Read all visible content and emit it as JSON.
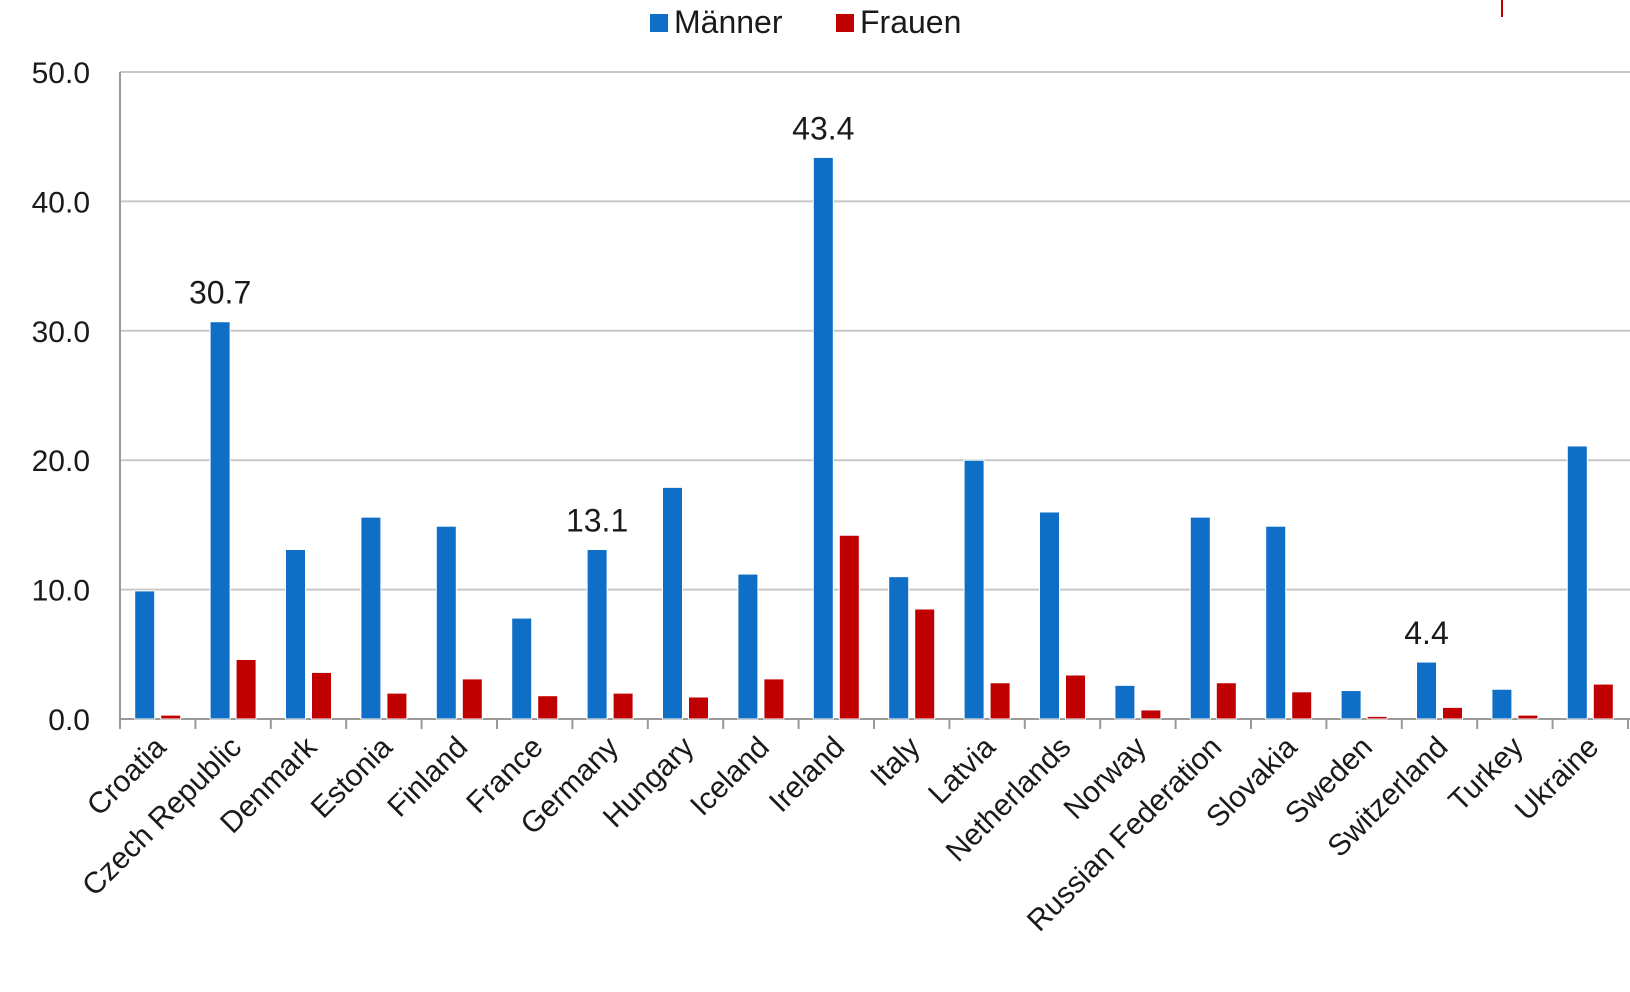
{
  "chart_data": {
    "type": "bar",
    "categories": [
      "Croatia",
      "Czech Republic",
      "Denmark",
      "Estonia",
      "Finland",
      "France",
      "Germany",
      "Hungary",
      "Iceland",
      "Ireland",
      "Italy",
      "Latvia",
      "Netherlands",
      "Norway",
      "Russian Federation",
      "Slovakia",
      "Sweden",
      "Switzerland",
      "Turkey",
      "Ukraine"
    ],
    "series": [
      {
        "name": "Männer",
        "color": "#0f6fc6",
        "values": [
          9.9,
          30.7,
          13.1,
          15.6,
          14.9,
          7.8,
          13.1,
          17.9,
          11.2,
          43.4,
          11.0,
          20.0,
          16.0,
          2.6,
          15.6,
          14.9,
          2.2,
          4.4,
          2.3,
          21.1
        ]
      },
      {
        "name": "Frauen",
        "color": "#c00000",
        "values": [
          0.3,
          4.6,
          3.6,
          2.0,
          3.1,
          1.8,
          2.0,
          1.7,
          3.1,
          14.2,
          8.5,
          2.8,
          3.4,
          0.7,
          2.8,
          2.1,
          0.2,
          0.9,
          0.3,
          2.7
        ]
      }
    ],
    "ylim": [
      0,
      50
    ],
    "yticks": [
      "0.0",
      "10.0",
      "20.0",
      "30.0",
      "40.0",
      "50.0"
    ],
    "data_labels": [
      {
        "series": 0,
        "index": 1,
        "text": "30.7"
      },
      {
        "series": 0,
        "index": 6,
        "text": "13.1"
      },
      {
        "series": 0,
        "index": 9,
        "text": "43.4"
      },
      {
        "series": 0,
        "index": 17,
        "text": "4.4"
      }
    ],
    "legend": "top-center",
    "grid": true
  }
}
